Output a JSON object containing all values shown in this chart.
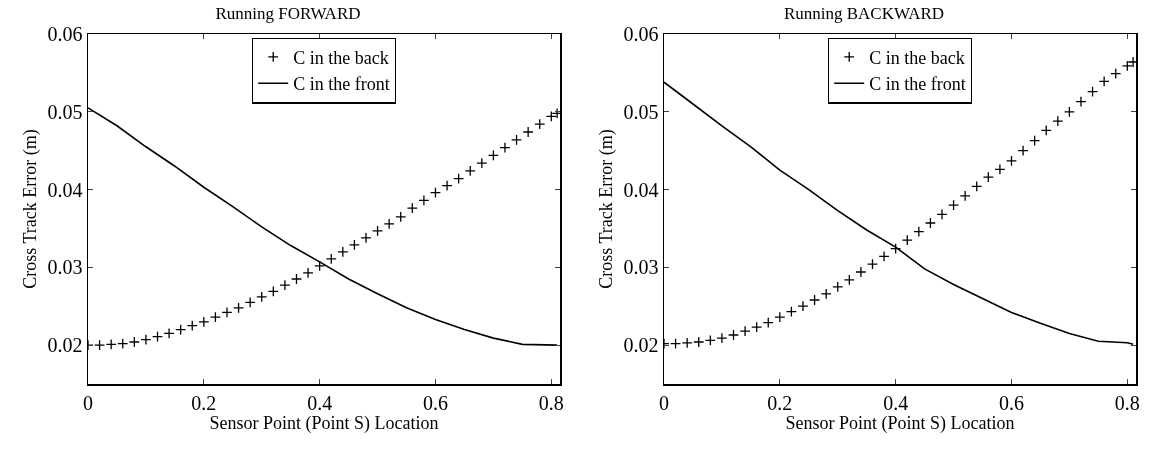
{
  "chart_data": [
    {
      "type": "line",
      "title": "Running FORWARD",
      "xlabel": "Sensor Point (Point S) Location",
      "ylabel": "Cross Track Error (m)",
      "xlim": [
        0,
        0.815
      ],
      "xticks": [
        0,
        0.2,
        0.4,
        0.6,
        0.8
      ],
      "ylim": [
        0.015,
        0.06
      ],
      "yticks": [
        0.02,
        0.03,
        0.04,
        0.05,
        0.06
      ],
      "grid": false,
      "legend": "top",
      "line_style": "solid",
      "series": [
        {
          "name": "C in the back",
          "type": "scatter",
          "marker": "cross",
          "color": "#000000",
          "x": [
            0,
            0.02,
            0.04,
            0.06,
            0.08,
            0.1,
            0.12,
            0.14,
            0.16,
            0.18,
            0.2,
            0.22,
            0.24,
            0.26,
            0.28,
            0.3,
            0.32,
            0.34,
            0.36,
            0.38,
            0.4,
            0.42,
            0.44,
            0.46,
            0.48,
            0.5,
            0.52,
            0.54,
            0.56,
            0.58,
            0.6,
            0.62,
            0.64,
            0.66,
            0.68,
            0.7,
            0.72,
            0.74,
            0.76,
            0.78,
            0.8,
            0.81
          ],
          "values": [
            0.02,
            0.02,
            0.0201,
            0.0202,
            0.0204,
            0.0207,
            0.0211,
            0.0215,
            0.022,
            0.0225,
            0.023,
            0.0236,
            0.0242,
            0.0248,
            0.0255,
            0.0262,
            0.0269,
            0.0277,
            0.0285,
            0.0293,
            0.0302,
            0.0311,
            0.032,
            0.0329,
            0.0338,
            0.0347,
            0.0356,
            0.0365,
            0.0376,
            0.0386,
            0.0396,
            0.0405,
            0.0414,
            0.0424,
            0.0434,
            0.0444,
            0.0454,
            0.0464,
            0.0474,
            0.0484,
            0.0494,
            0.0498
          ]
        },
        {
          "name": "C in the front",
          "color": "#000000",
          "x": [
            0,
            0.05,
            0.1,
            0.15,
            0.2,
            0.25,
            0.3,
            0.35,
            0.4,
            0.45,
            0.5,
            0.55,
            0.6,
            0.65,
            0.7,
            0.75,
            0.81
          ],
          "values": [
            0.0505,
            0.0482,
            0.0455,
            0.043,
            0.0403,
            0.0378,
            0.0352,
            0.0328,
            0.0307,
            0.0285,
            0.0266,
            0.0248,
            0.0233,
            0.022,
            0.0209,
            0.0201,
            0.02
          ]
        }
      ]
    },
    {
      "type": "line",
      "title": "Running BACKWARD",
      "xlabel": "Sensor Point (Point S) Location",
      "ylabel": "Cross Track Error (m)",
      "xlim": [
        0,
        0.815
      ],
      "xticks": [
        0,
        0.2,
        0.4,
        0.6,
        0.8
      ],
      "ylim": [
        0.015,
        0.06
      ],
      "yticks": [
        0.02,
        0.03,
        0.04,
        0.05,
        0.06
      ],
      "grid": false,
      "legend": "top",
      "line_style": "solid",
      "series": [
        {
          "name": "C in the back",
          "type": "scatter",
          "marker": "cross",
          "color": "#000000",
          "x": [
            0,
            0.02,
            0.04,
            0.06,
            0.08,
            0.1,
            0.12,
            0.14,
            0.16,
            0.18,
            0.2,
            0.22,
            0.24,
            0.26,
            0.28,
            0.3,
            0.32,
            0.34,
            0.36,
            0.38,
            0.4,
            0.42,
            0.44,
            0.46,
            0.48,
            0.5,
            0.52,
            0.54,
            0.56,
            0.58,
            0.6,
            0.62,
            0.64,
            0.66,
            0.68,
            0.7,
            0.72,
            0.74,
            0.76,
            0.78,
            0.8,
            0.81
          ],
          "values": [
            0.0202,
            0.0202,
            0.0203,
            0.0204,
            0.0206,
            0.0209,
            0.0213,
            0.0218,
            0.0223,
            0.0229,
            0.0236,
            0.0243,
            0.025,
            0.0258,
            0.0266,
            0.0275,
            0.0284,
            0.0294,
            0.0304,
            0.0314,
            0.0324,
            0.0335,
            0.0346,
            0.0357,
            0.0368,
            0.038,
            0.0392,
            0.0404,
            0.0416,
            0.0426,
            0.0437,
            0.045,
            0.0463,
            0.0476,
            0.0488,
            0.05,
            0.0513,
            0.0526,
            0.0539,
            0.0549,
            0.0559,
            0.0564
          ]
        },
        {
          "name": "C in the front",
          "color": "#000000",
          "x": [
            0,
            0.05,
            0.1,
            0.15,
            0.2,
            0.25,
            0.3,
            0.35,
            0.4,
            0.45,
            0.5,
            0.55,
            0.6,
            0.65,
            0.7,
            0.75,
            0.8,
            0.81
          ],
          "values": [
            0.0538,
            0.051,
            0.0482,
            0.0455,
            0.0425,
            0.04,
            0.0373,
            0.0348,
            0.0326,
            0.0298,
            0.0278,
            0.026,
            0.0242,
            0.0228,
            0.0215,
            0.0205,
            0.0203,
            0.0201
          ]
        }
      ]
    }
  ]
}
